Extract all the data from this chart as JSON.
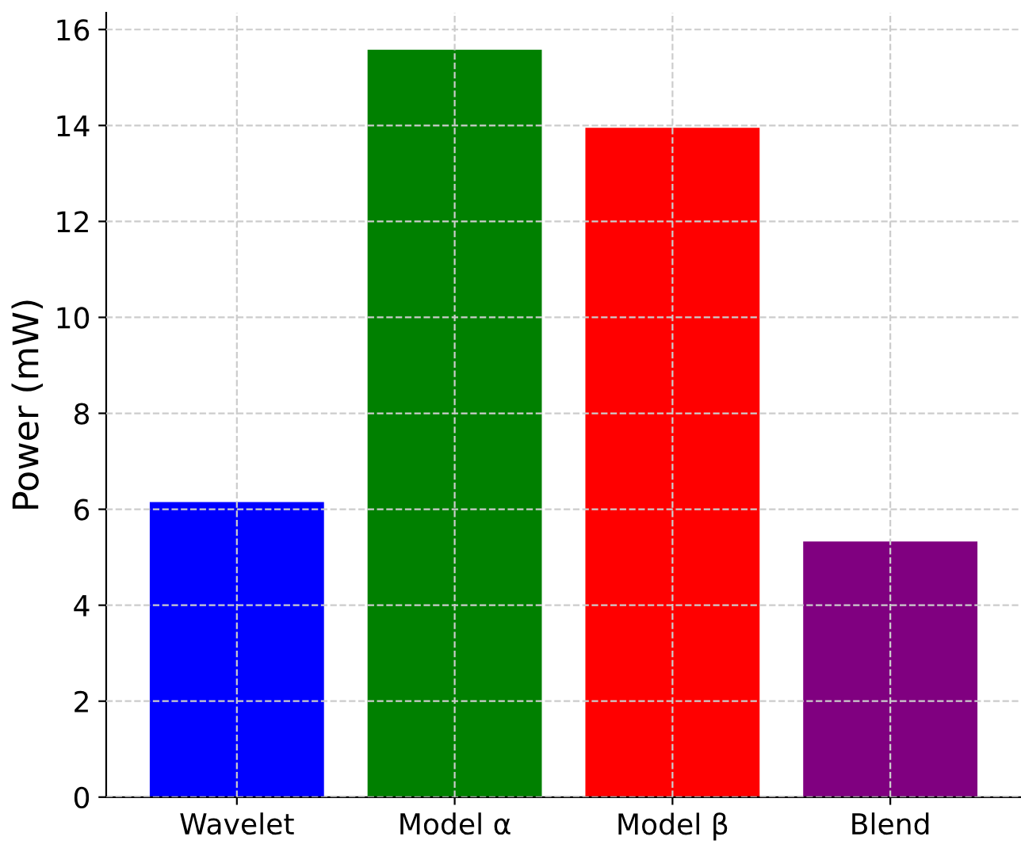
{
  "chart_data": {
    "type": "bar",
    "ylabel": "Power (mW)",
    "categories": [
      "Wavelet",
      "Model α",
      "Model β",
      "Blend"
    ],
    "values": [
      6.15,
      15.58,
      13.95,
      5.33
    ],
    "colors": [
      "#0000ff",
      "#008000",
      "#ff0000",
      "#800080"
    ],
    "ylim": [
      0,
      16.35
    ],
    "yticks": [
      0,
      2,
      4,
      6,
      8,
      10,
      12,
      14,
      16
    ],
    "grid": true
  }
}
